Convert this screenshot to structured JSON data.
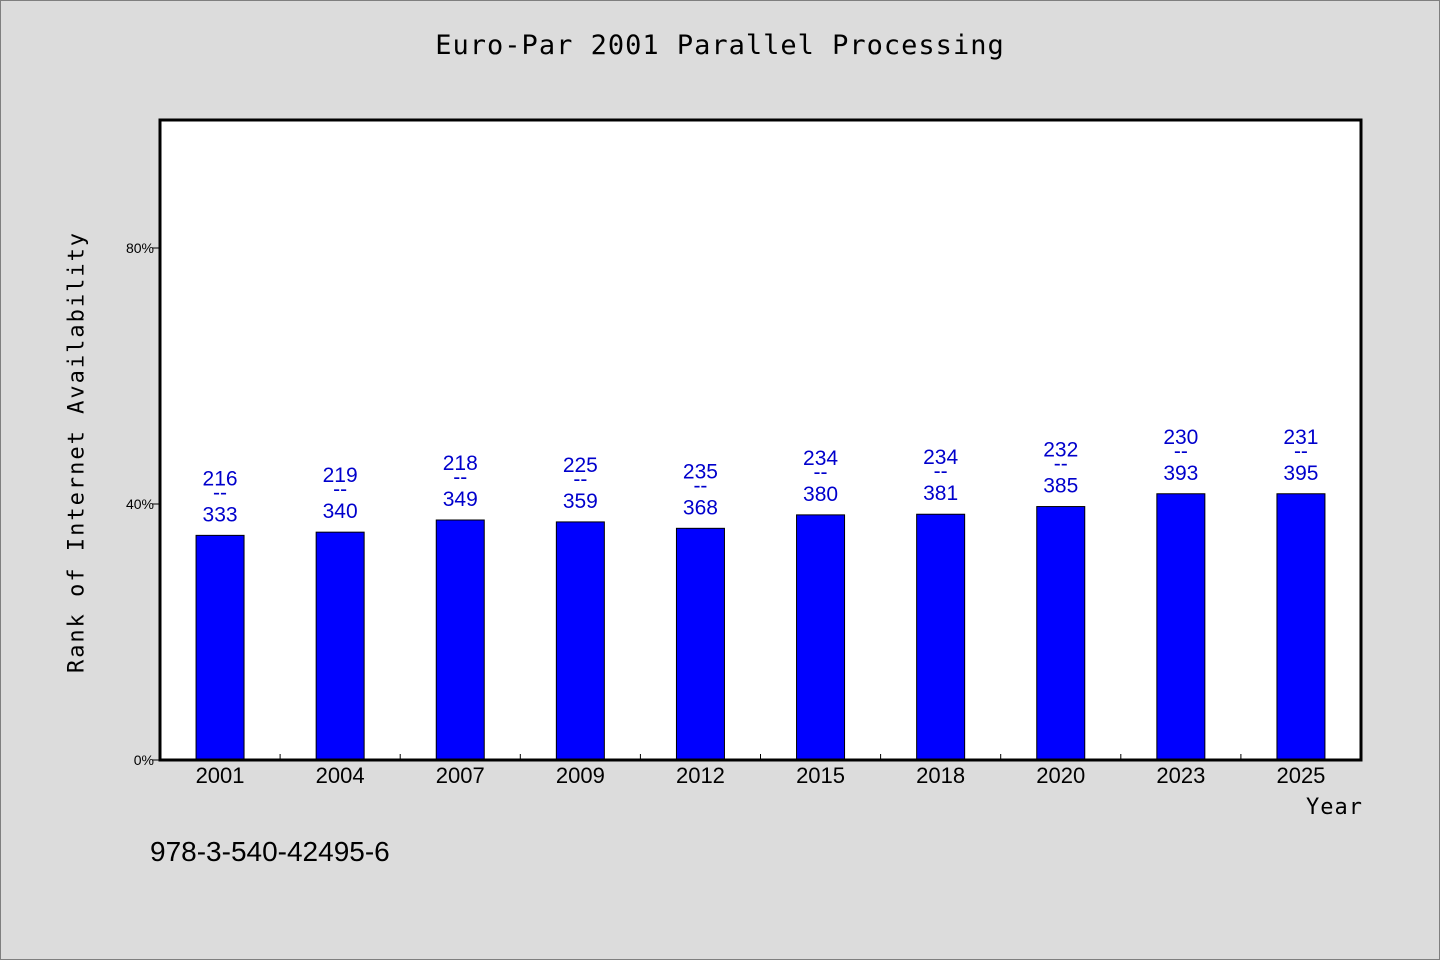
{
  "chart_data": {
    "type": "bar",
    "title": "Euro-Par 2001 Parallel Processing",
    "xlabel": "Year",
    "ylabel": "Rank of Internet Availability",
    "ylim": [
      0,
      100
    ],
    "yticks": [
      0,
      40,
      80
    ],
    "ytick_labels": [
      "0%",
      "40%",
      "80%"
    ],
    "grid": false,
    "categories": [
      "2001",
      "2004",
      "2007",
      "2009",
      "2012",
      "2015",
      "2018",
      "2020",
      "2023",
      "2025"
    ],
    "values": [
      35.1,
      35.6,
      37.5,
      37.2,
      36.2,
      38.3,
      38.4,
      39.6,
      41.6,
      41.6
    ],
    "data_labels": [
      {
        "top": "216",
        "sep": "--",
        "bottom": "333"
      },
      {
        "top": "219",
        "sep": "--",
        "bottom": "340"
      },
      {
        "top": "218",
        "sep": "--",
        "bottom": "349"
      },
      {
        "top": "225",
        "sep": "--",
        "bottom": "359"
      },
      {
        "top": "235",
        "sep": "--",
        "bottom": "368"
      },
      {
        "top": "234",
        "sep": "--",
        "bottom": "380"
      },
      {
        "top": "234",
        "sep": "--",
        "bottom": "381"
      },
      {
        "top": "232",
        "sep": "--",
        "bottom": "385"
      },
      {
        "top": "230",
        "sep": "--",
        "bottom": "393"
      },
      {
        "top": "231",
        "sep": "--",
        "bottom": "395"
      }
    ],
    "bar_color": "#0000ff",
    "label_color": "#0000cc",
    "annotation": "978-3-540-42495-6"
  },
  "colors": {
    "background": "#dcdcdc",
    "plot_background": "#ffffff"
  }
}
